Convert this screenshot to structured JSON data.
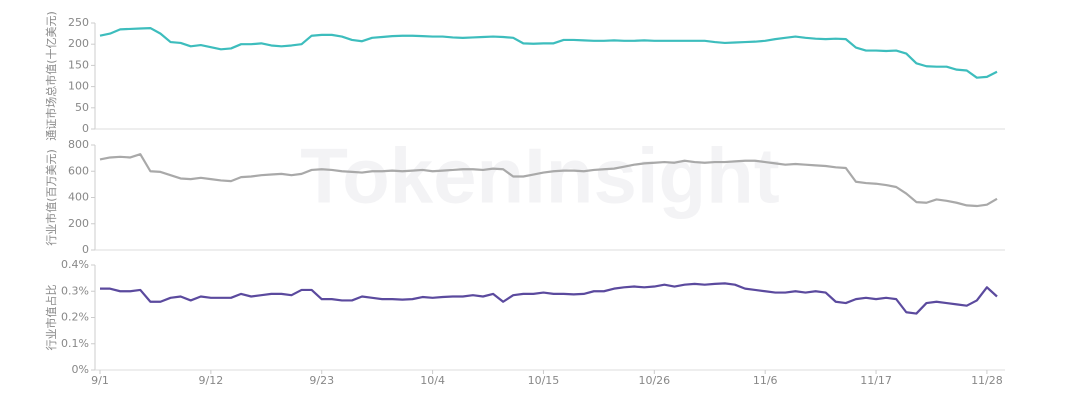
{
  "watermark": "TokenInsight",
  "chart_data": [
    {
      "type": "line",
      "y_label": "通证市场总市值(十亿美元)",
      "ylim": [
        0,
        250
      ],
      "yticks": [
        0,
        50,
        100,
        150,
        200,
        250
      ],
      "grid": false,
      "series": [
        {
          "color": "#3dbdbd",
          "values": [
            220,
            225,
            235,
            236,
            237,
            238,
            225,
            205,
            203,
            195,
            198,
            193,
            188,
            190,
            200,
            200,
            202,
            197,
            195,
            197,
            200,
            220,
            222,
            222,
            218,
            210,
            207,
            215,
            217,
            219,
            220,
            220,
            219,
            218,
            218,
            216,
            215,
            216,
            217,
            218,
            217,
            215,
            202,
            201,
            202,
            202,
            210,
            210,
            209,
            208,
            208,
            209,
            208,
            208,
            209,
            208,
            208,
            208,
            208,
            208,
            208,
            205,
            203,
            204,
            205,
            206,
            208,
            212,
            215,
            218,
            215,
            213,
            212,
            213,
            212,
            192,
            185,
            185,
            184,
            185,
            178,
            155,
            148,
            147,
            147,
            140,
            138,
            121,
            123,
            135
          ]
        }
      ]
    },
    {
      "type": "line",
      "y_label": "行业市值(百万美元)",
      "ylim": [
        0,
        800
      ],
      "yticks": [
        0,
        200,
        400,
        600,
        800
      ],
      "grid": false,
      "series": [
        {
          "color": "#a9a9a9",
          "values": [
            690,
            705,
            710,
            705,
            730,
            600,
            595,
            570,
            545,
            540,
            550,
            540,
            530,
            525,
            555,
            560,
            570,
            575,
            580,
            570,
            580,
            610,
            615,
            610,
            600,
            595,
            590,
            600,
            600,
            605,
            600,
            605,
            610,
            600,
            605,
            610,
            615,
            615,
            610,
            620,
            615,
            560,
            560,
            575,
            590,
            600,
            605,
            605,
            600,
            610,
            615,
            620,
            635,
            650,
            660,
            665,
            670,
            665,
            680,
            670,
            665,
            670,
            670,
            675,
            680,
            680,
            670,
            660,
            650,
            655,
            650,
            645,
            640,
            630,
            625,
            520,
            510,
            505,
            495,
            480,
            430,
            365,
            360,
            385,
            375,
            360,
            340,
            335,
            345,
            390
          ]
        }
      ]
    },
    {
      "type": "line",
      "y_label": "行业市值占比",
      "ylim": [
        0,
        0.4
      ],
      "yticks": [
        {
          "value": 0,
          "label": "0%"
        },
        {
          "value": 0.1,
          "label": "0.1%"
        },
        {
          "value": 0.2,
          "label": "0.2%"
        },
        {
          "value": 0.3,
          "label": "0.3%"
        },
        {
          "value": 0.4,
          "label": "0.4%"
        }
      ],
      "grid": false,
      "categories": [
        "9/1",
        null,
        null,
        null,
        null,
        null,
        null,
        null,
        null,
        null,
        null,
        "9/12",
        null,
        null,
        null,
        null,
        null,
        null,
        null,
        null,
        null,
        null,
        "9/23",
        null,
        null,
        null,
        null,
        null,
        null,
        null,
        null,
        null,
        null,
        "10/4",
        null,
        null,
        null,
        null,
        null,
        null,
        null,
        null,
        null,
        null,
        "10/15",
        null,
        null,
        null,
        null,
        null,
        null,
        null,
        null,
        null,
        null,
        "10/26",
        null,
        null,
        null,
        null,
        null,
        null,
        null,
        null,
        null,
        null,
        "11/6",
        null,
        null,
        null,
        null,
        null,
        null,
        null,
        null,
        null,
        null,
        "11/17",
        null,
        null,
        null,
        null,
        null,
        null,
        null,
        null,
        null,
        null,
        "11/28",
        null
      ],
      "series": [
        {
          "color": "#5b4a9e",
          "values": [
            0.31,
            0.31,
            0.3,
            0.3,
            0.305,
            0.26,
            0.26,
            0.275,
            0.28,
            0.265,
            0.28,
            0.275,
            0.275,
            0.275,
            0.29,
            0.28,
            0.285,
            0.29,
            0.29,
            0.285,
            0.305,
            0.305,
            0.27,
            0.27,
            0.265,
            0.265,
            0.28,
            0.275,
            0.27,
            0.27,
            0.268,
            0.27,
            0.278,
            0.275,
            0.278,
            0.28,
            0.28,
            0.285,
            0.28,
            0.29,
            0.26,
            0.285,
            0.29,
            0.29,
            0.295,
            0.29,
            0.29,
            0.288,
            0.29,
            0.3,
            0.3,
            0.31,
            0.315,
            0.318,
            0.315,
            0.318,
            0.325,
            0.318,
            0.325,
            0.328,
            0.325,
            0.328,
            0.33,
            0.325,
            0.31,
            0.305,
            0.3,
            0.295,
            0.295,
            0.3,
            0.295,
            0.3,
            0.295,
            0.26,
            0.255,
            0.27,
            0.275,
            0.27,
            0.275,
            0.27,
            0.22,
            0.215,
            0.255,
            0.26,
            0.255,
            0.25,
            0.245,
            0.265,
            0.315,
            0.28
          ]
        }
      ]
    }
  ]
}
